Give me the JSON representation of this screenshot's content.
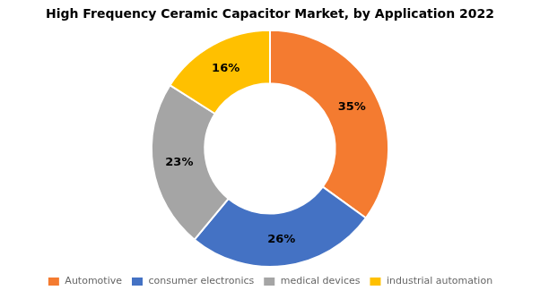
{
  "chart_data": {
    "type": "doughnut",
    "title": "High Frequency Ceramic Capacitor Market, by Application 2022",
    "categories": [
      "Automotive",
      "consumer electronics",
      "medical devices",
      "industrial automation"
    ],
    "values": [
      35,
      26,
      23,
      16
    ],
    "value_labels": [
      "35%",
      "26%",
      "23%",
      "16%"
    ],
    "data_labels": true,
    "colors": [
      "#F47B30",
      "#4472C4",
      "#A5A5A5",
      "#FFC000"
    ],
    "legend": "bottom"
  }
}
